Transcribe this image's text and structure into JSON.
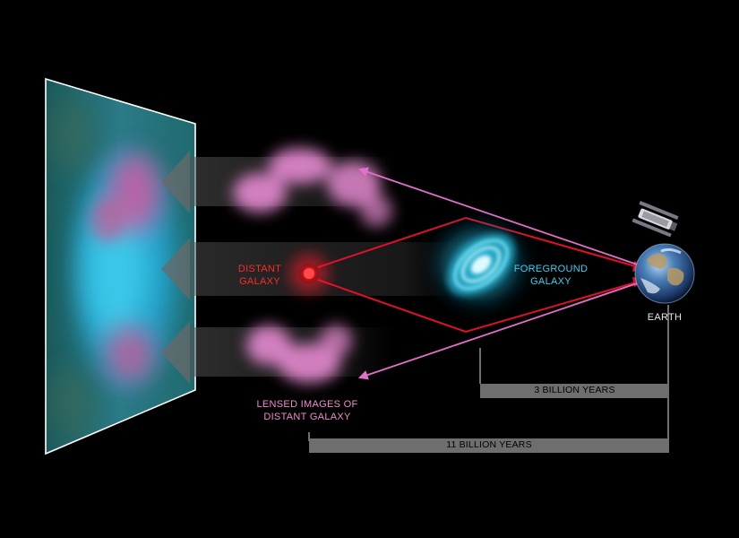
{
  "labels": {
    "distant_galaxy": [
      "DISTANT",
      "GALAXY"
    ],
    "foreground_galaxy": [
      "FOREGROUND",
      "GALAXY"
    ],
    "earth": "EARTH",
    "lensed_images": [
      "LENSED IMAGES OF",
      "DISTANT GALAXY"
    ]
  },
  "distances": {
    "foreground_to_earth": "3 BILLION YEARS",
    "distant_to_earth": "11 BILLION YEARS"
  },
  "colors": {
    "background": "#000000",
    "distant_galaxy": "#ff1f2a",
    "foreground_galaxy": "#37d3f0",
    "lensed_image": "#f08ad0",
    "light_path": "#e0102a",
    "lensed_ray": "#e070c8",
    "distance_bar": "#6e6e6e"
  },
  "icons": {
    "telescope": "satellite-telescope-icon",
    "earth": "earth-globe-icon"
  }
}
